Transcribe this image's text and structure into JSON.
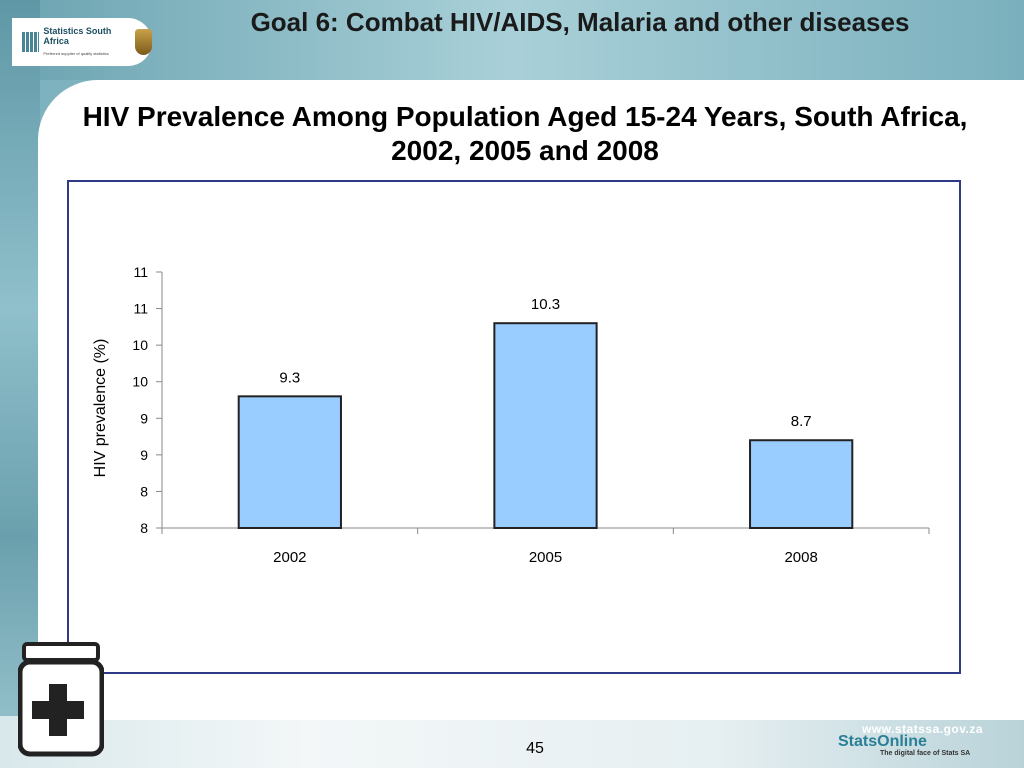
{
  "header": {
    "logo_name": "Statistics South Africa",
    "logo_tagline": "Preferred supplier of quality statistics",
    "goal_title": "Goal 6: Combat HIV/AIDS, Malaria and other diseases"
  },
  "icons": {
    "medicine": "medicine-bottle-icon",
    "crest": "coat-of-arms-icon"
  },
  "colors": {
    "bar_fill": "#99ccff",
    "bar_stroke": "#222222",
    "chart_border": "#2e3a86",
    "accent": "#2a7f96"
  },
  "chart_data": {
    "type": "bar",
    "title": "HIV Prevalence Among Population Aged 15-24 Years, South Africa, 2002, 2005 and 2008",
    "categories": [
      "2002",
      "2005",
      "2008"
    ],
    "values": [
      9.3,
      10.3,
      8.7
    ],
    "data_labels": [
      "9.3",
      "10.3",
      "8.7"
    ],
    "ylabel": "HIV prevalence (%)",
    "xlabel": "",
    "ylim": [
      7.5,
      11
    ],
    "y_tick_values": [
      7.5,
      8.0,
      8.5,
      9.0,
      9.5,
      10.0,
      10.5,
      11.0
    ],
    "y_tick_labels": [
      "8",
      "8",
      "9",
      "9",
      "10",
      "10",
      "11",
      "11"
    ],
    "grid": false,
    "legend": "none"
  },
  "footer": {
    "page_number": "45",
    "url": "www.statssa.gov.za",
    "brand": "StatsOnline",
    "tagline": "The digital face of Stats SA"
  }
}
